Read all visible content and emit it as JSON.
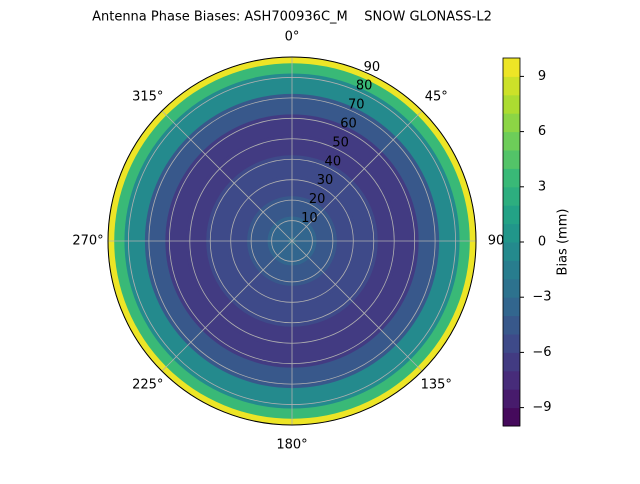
{
  "chart_data": {
    "type": "polar-contour",
    "title": "Antenna Phase Biases: ASH700936C_M    SNOW GLONASS-L2",
    "zenith": [
      0,
      10,
      20,
      30,
      40,
      50,
      60,
      70,
      80,
      85,
      90
    ],
    "values": [
      -3,
      -4,
      -5,
      -6,
      -6,
      -7,
      -7,
      -5,
      -1,
      3,
      9
    ],
    "ylim": [
      0,
      90
    ],
    "yticks": [
      10,
      20,
      30,
      40,
      50,
      60,
      70,
      80,
      90
    ],
    "xticks": [
      {
        "value": 0,
        "label": "0°"
      },
      {
        "value": 45,
        "label": "45°"
      },
      {
        "value": 90,
        "label": "90"
      },
      {
        "value": 135,
        "label": "135°"
      },
      {
        "value": 180,
        "label": "180°"
      },
      {
        "value": 225,
        "label": "225°"
      },
      {
        "value": 270,
        "label": "270°"
      },
      {
        "value": 315,
        "label": "315°"
      }
    ],
    "colorbar_label": "Bias (mm)",
    "clim": [
      -10,
      10
    ],
    "level_step": 1,
    "cticks": [
      {
        "value": -9,
        "label": "−9"
      },
      {
        "value": -6,
        "label": "−6"
      },
      {
        "value": -3,
        "label": "−3"
      },
      0,
      3,
      6,
      9
    ],
    "colormap": "viridis",
    "grid": true
  }
}
